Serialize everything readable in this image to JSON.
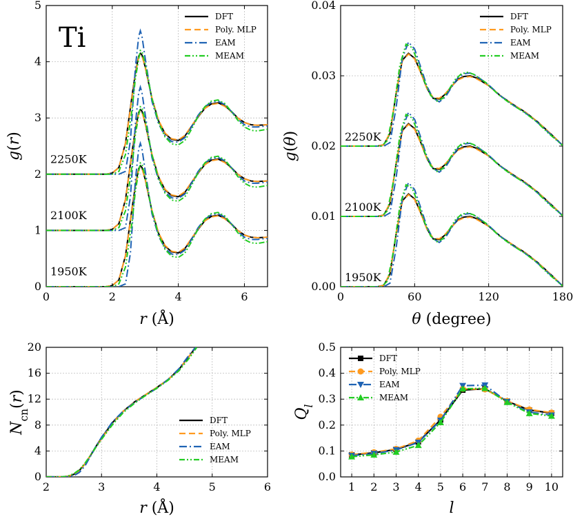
{
  "colors": {
    "DFT": "#000000",
    "Poly. MLP": "#ff9a1f",
    "EAM": "#1f63b4",
    "MEAM": "#22cc22"
  },
  "chart_data": [
    {
      "id": "gr",
      "type": "line",
      "title": "Ti",
      "xlabel": "r (Å)",
      "ylabel": "g(r)",
      "xlim": [
        0,
        6.7
      ],
      "ylim": [
        0,
        5
      ],
      "xticks": [
        0,
        2,
        4,
        6
      ],
      "yticks": [
        0,
        1,
        2,
        3,
        4,
        5
      ],
      "grid": true,
      "legend": "top-right",
      "legend_entries": [
        "DFT",
        "Poly. MLP",
        "EAM",
        "MEAM"
      ],
      "temperature_labels": [
        {
          "text": "2250K",
          "y": 2.2
        },
        {
          "text": "2100K",
          "y": 1.2
        },
        {
          "text": "1950K",
          "y": 0.2
        }
      ],
      "offset_step": 1,
      "series": [
        {
          "name": "DFT",
          "x": [
            0,
            1.8,
            2.0,
            2.2,
            2.4,
            2.6,
            2.7,
            2.8,
            2.85,
            2.9,
            3.0,
            3.2,
            3.4,
            3.6,
            3.8,
            4.0,
            4.2,
            4.4,
            4.6,
            4.8,
            5.0,
            5.2,
            5.4,
            5.6,
            5.8,
            6.0,
            6.2,
            6.4,
            6.7
          ],
          "y": [
            0,
            0,
            0.02,
            0.12,
            0.55,
            1.4,
            1.8,
            2.1,
            2.15,
            2.12,
            1.9,
            1.35,
            0.95,
            0.72,
            0.62,
            0.6,
            0.68,
            0.85,
            1.02,
            1.17,
            1.25,
            1.27,
            1.22,
            1.12,
            1.0,
            0.92,
            0.88,
            0.87,
            0.88
          ]
        },
        {
          "name": "Poly. MLP",
          "x": [
            0,
            1.8,
            2.0,
            2.2,
            2.4,
            2.6,
            2.7,
            2.8,
            2.85,
            2.9,
            3.0,
            3.2,
            3.4,
            3.6,
            3.8,
            4.0,
            4.2,
            4.4,
            4.6,
            4.8,
            5.0,
            5.2,
            5.4,
            5.6,
            5.8,
            6.0,
            6.2,
            6.4,
            6.7
          ],
          "y": [
            0,
            0,
            0.02,
            0.12,
            0.55,
            1.38,
            1.78,
            2.08,
            2.12,
            2.1,
            1.9,
            1.36,
            0.96,
            0.73,
            0.63,
            0.61,
            0.69,
            0.86,
            1.03,
            1.17,
            1.24,
            1.26,
            1.21,
            1.11,
            1.0,
            0.92,
            0.88,
            0.87,
            0.88
          ]
        },
        {
          "name": "EAM",
          "x": [
            0,
            2.2,
            2.4,
            2.55,
            2.7,
            2.8,
            2.85,
            2.9,
            3.0,
            3.2,
            3.4,
            3.6,
            3.8,
            4.0,
            4.2,
            4.4,
            4.6,
            4.8,
            5.0,
            5.2,
            5.4,
            5.6,
            5.8,
            6.0,
            6.2,
            6.4,
            6.7
          ],
          "y": [
            0,
            0,
            0.05,
            0.6,
            1.9,
            2.45,
            2.55,
            2.45,
            2.05,
            1.3,
            0.9,
            0.68,
            0.58,
            0.57,
            0.65,
            0.84,
            1.05,
            1.2,
            1.28,
            1.3,
            1.24,
            1.12,
            0.98,
            0.88,
            0.84,
            0.84,
            0.86
          ]
        },
        {
          "name": "MEAM",
          "x": [
            0,
            2.0,
            2.2,
            2.4,
            2.6,
            2.7,
            2.8,
            2.85,
            2.9,
            3.0,
            3.2,
            3.4,
            3.6,
            3.8,
            4.0,
            4.2,
            4.4,
            4.6,
            4.8,
            5.0,
            5.2,
            5.4,
            5.6,
            5.8,
            6.0,
            6.2,
            6.4,
            6.7
          ],
          "y": [
            0,
            0,
            0.05,
            0.35,
            1.15,
            1.7,
            2.05,
            2.2,
            2.18,
            1.95,
            1.35,
            0.92,
            0.66,
            0.54,
            0.52,
            0.6,
            0.8,
            1.03,
            1.2,
            1.3,
            1.32,
            1.26,
            1.12,
            0.96,
            0.84,
            0.78,
            0.77,
            0.8
          ]
        }
      ]
    },
    {
      "id": "gtheta",
      "type": "line",
      "xlabel": "θ (degree)",
      "ylabel": "g(θ)",
      "xlim": [
        0,
        180
      ],
      "ylim": [
        0,
        0.04
      ],
      "xticks": [
        0,
        60,
        120,
        180
      ],
      "yticks": [
        0.0,
        0.01,
        0.02,
        0.03,
        0.04
      ],
      "ytick_labels": [
        "0.00",
        "0.01",
        "0.02",
        "0.03",
        "0.04"
      ],
      "grid": true,
      "legend": "top-right",
      "legend_entries": [
        "DFT",
        "Poly. MLP",
        "EAM",
        "MEAM"
      ],
      "temperature_labels": [
        {
          "text": "2250K",
          "y": 0.0208
        },
        {
          "text": "2100K",
          "y": 0.0108
        },
        {
          "text": "1950K",
          "y": 0.0008
        }
      ],
      "offset_step": 0.01,
      "series": [
        {
          "name": "DFT",
          "x": [
            0,
            30,
            35,
            40,
            45,
            50,
            55,
            60,
            65,
            70,
            75,
            80,
            85,
            90,
            95,
            100,
            105,
            110,
            120,
            130,
            140,
            150,
            160,
            170,
            180
          ],
          "y": [
            0,
            0,
            0.0002,
            0.0018,
            0.0075,
            0.0122,
            0.0132,
            0.0125,
            0.0105,
            0.0082,
            0.0068,
            0.0067,
            0.0074,
            0.0085,
            0.0095,
            0.0099,
            0.01,
            0.0097,
            0.0086,
            0.0071,
            0.0059,
            0.0048,
            0.0034,
            0.0018,
            0.0001
          ]
        },
        {
          "name": "Poly. MLP",
          "x": [
            0,
            30,
            35,
            40,
            45,
            50,
            55,
            60,
            65,
            70,
            75,
            80,
            85,
            90,
            95,
            100,
            105,
            110,
            120,
            130,
            140,
            150,
            160,
            170,
            180
          ],
          "y": [
            0,
            0,
            0.0002,
            0.0019,
            0.0076,
            0.0121,
            0.0131,
            0.0124,
            0.0104,
            0.0082,
            0.0069,
            0.0068,
            0.0075,
            0.0085,
            0.0094,
            0.0098,
            0.0099,
            0.0096,
            0.0086,
            0.0071,
            0.0059,
            0.0048,
            0.0034,
            0.0018,
            0.0001
          ]
        },
        {
          "name": "EAM",
          "x": [
            0,
            35,
            40,
            45,
            50,
            55,
            60,
            65,
            70,
            75,
            80,
            85,
            90,
            95,
            100,
            105,
            110,
            120,
            130,
            140,
            150,
            160,
            170,
            180
          ],
          "y": [
            0,
            0,
            0.0005,
            0.0055,
            0.0125,
            0.0148,
            0.0138,
            0.0112,
            0.0085,
            0.0068,
            0.0063,
            0.007,
            0.0084,
            0.0097,
            0.0103,
            0.0104,
            0.01,
            0.0087,
            0.0071,
            0.0058,
            0.0047,
            0.0033,
            0.0017,
            0.0001
          ]
        },
        {
          "name": "MEAM",
          "x": [
            0,
            33,
            38,
            43,
            48,
            53,
            58,
            63,
            68,
            73,
            78,
            83,
            88,
            93,
            98,
            103,
            108,
            118,
            128,
            138,
            148,
            158,
            168,
            180
          ],
          "y": [
            0,
            0,
            0.0008,
            0.0052,
            0.0115,
            0.0145,
            0.014,
            0.0118,
            0.0092,
            0.0072,
            0.0064,
            0.0068,
            0.0081,
            0.0095,
            0.0103,
            0.0105,
            0.0102,
            0.009,
            0.0073,
            0.006,
            0.0049,
            0.0036,
            0.0019,
            0.0001
          ]
        }
      ]
    },
    {
      "id": "ncn",
      "type": "line",
      "xlabel": "r (Å)",
      "ylabel": "N_cn(r)",
      "xlim": [
        2,
        6
      ],
      "ylim": [
        0,
        20
      ],
      "xticks": [
        2,
        3,
        4,
        5,
        6
      ],
      "yticks": [
        0,
        4,
        8,
        12,
        16,
        20
      ],
      "grid": true,
      "legend": "bottom-right",
      "legend_entries": [
        "DFT",
        "Poly. MLP",
        "EAM",
        "MEAM"
      ],
      "series": [
        {
          "name": "DFT",
          "x": [
            2.0,
            2.3,
            2.4,
            2.5,
            2.6,
            2.7,
            2.8,
            2.9,
            3.0,
            3.2,
            3.4,
            3.6,
            3.8,
            4.0,
            4.2,
            4.4,
            4.6,
            4.7
          ],
          "y": [
            0,
            0,
            0.1,
            0.4,
            1.0,
            2.0,
            3.3,
            4.7,
            6.0,
            8.4,
            10.2,
            11.6,
            12.7,
            13.8,
            15.0,
            16.6,
            18.8,
            20.0
          ]
        },
        {
          "name": "Poly. MLP",
          "x": [
            2.0,
            2.3,
            2.4,
            2.5,
            2.6,
            2.7,
            2.8,
            2.9,
            3.0,
            3.2,
            3.4,
            3.6,
            3.8,
            4.0,
            4.2,
            4.4,
            4.6,
            4.7
          ],
          "y": [
            0,
            0,
            0.1,
            0.4,
            1.0,
            2.0,
            3.3,
            4.6,
            5.9,
            8.3,
            10.2,
            11.6,
            12.7,
            13.8,
            15.0,
            16.6,
            18.8,
            20.0
          ]
        },
        {
          "name": "EAM",
          "x": [
            2.0,
            2.4,
            2.5,
            2.6,
            2.7,
            2.8,
            2.9,
            3.0,
            3.2,
            3.4,
            3.6,
            3.8,
            4.0,
            4.2,
            4.4,
            4.6,
            4.7
          ],
          "y": [
            0,
            0,
            0.2,
            0.7,
            1.7,
            3.2,
            4.7,
            6.1,
            8.5,
            10.2,
            11.5,
            12.6,
            13.7,
            15.0,
            16.7,
            19.0,
            20.0
          ]
        },
        {
          "name": "MEAM",
          "x": [
            2.0,
            2.3,
            2.4,
            2.5,
            2.6,
            2.7,
            2.8,
            2.9,
            3.0,
            3.2,
            3.4,
            3.6,
            3.8,
            4.0,
            4.2,
            4.4,
            4.6,
            4.72
          ],
          "y": [
            0,
            0,
            0.15,
            0.5,
            1.1,
            2.1,
            3.3,
            4.6,
            5.8,
            8.1,
            10.0,
            11.4,
            12.6,
            13.7,
            14.9,
            16.4,
            18.5,
            20.0
          ]
        }
      ]
    },
    {
      "id": "ql",
      "type": "line",
      "xlabel": "l",
      "ylabel": "Q_l",
      "xlim": [
        0.5,
        10.5
      ],
      "ylim": [
        0,
        0.5
      ],
      "xticks": [
        1,
        2,
        3,
        4,
        5,
        6,
        7,
        8,
        9,
        10
      ],
      "yticks": [
        0.0,
        0.1,
        0.2,
        0.3,
        0.4,
        0.5
      ],
      "ytick_labels": [
        "0.0",
        "0.1",
        "0.2",
        "0.3",
        "0.4",
        "0.5"
      ],
      "grid": true,
      "legend": "top-left",
      "legend_entries": [
        "DFT",
        "Poly. MLP",
        "EAM",
        "MEAM"
      ],
      "categories": [
        1,
        2,
        3,
        4,
        5,
        6,
        7,
        8,
        9,
        10
      ],
      "series": [
        {
          "name": "DFT",
          "marker": "square",
          "values": [
            0.085,
            0.093,
            0.106,
            0.135,
            0.22,
            0.335,
            0.34,
            0.292,
            0.258,
            0.246
          ]
        },
        {
          "name": "Poly. MLP",
          "marker": "circle",
          "values": [
            0.086,
            0.095,
            0.108,
            0.14,
            0.232,
            0.34,
            0.338,
            0.293,
            0.26,
            0.248
          ]
        },
        {
          "name": "EAM",
          "marker": "triangle-down",
          "values": [
            0.082,
            0.09,
            0.104,
            0.133,
            0.218,
            0.352,
            0.354,
            0.29,
            0.25,
            0.238
          ]
        },
        {
          "name": "MEAM",
          "marker": "triangle-up",
          "values": [
            0.078,
            0.085,
            0.096,
            0.122,
            0.21,
            0.34,
            0.342,
            0.288,
            0.245,
            0.235
          ]
        }
      ]
    }
  ]
}
